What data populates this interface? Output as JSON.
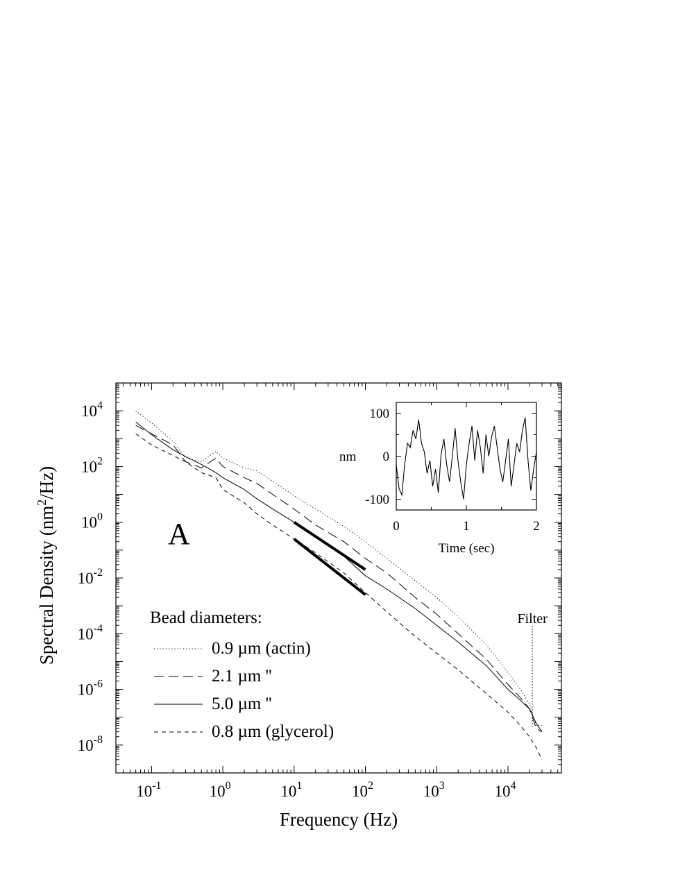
{
  "chart_data": [
    {
      "type": "line",
      "title": "",
      "panel_label": "A",
      "xlabel": "Frequency (Hz)",
      "ylabel_base": "Spectral Density (nm",
      "ylabel_sup": "2",
      "ylabel_tail": "/Hz)",
      "x_scale": "log",
      "y_scale": "log",
      "xlim": [
        0.0316,
        56234
      ],
      "ylim": [
        1e-09,
        100000.0
      ],
      "x_ticks": [
        {
          "value": 0.1,
          "base": "10",
          "exp": "-1"
        },
        {
          "value": 1,
          "base": "10",
          "exp": "0"
        },
        {
          "value": 10,
          "base": "10",
          "exp": "1"
        },
        {
          "value": 100,
          "base": "10",
          "exp": "2"
        },
        {
          "value": 1000,
          "base": "10",
          "exp": "3"
        },
        {
          "value": 10000,
          "base": "10",
          "exp": "4"
        }
      ],
      "y_ticks": [
        {
          "value": 10000,
          "base": "10",
          "exp": "4"
        },
        {
          "value": 100,
          "base": "10",
          "exp": "2"
        },
        {
          "value": 1,
          "base": "10",
          "exp": "0"
        },
        {
          "value": 0.01,
          "base": "10",
          "exp": "-2"
        },
        {
          "value": 0.0001,
          "base": "10",
          "exp": "-4"
        },
        {
          "value": 1e-06,
          "base": "10",
          "exp": "-6"
        },
        {
          "value": 1e-08,
          "base": "10",
          "exp": "-8"
        }
      ],
      "legend_title": "Bead diameters:",
      "legend_position": "bottom-left",
      "series": [
        {
          "name": "0.9 µm (actin)",
          "style": "dotted",
          "x": [
            0.06,
            0.1,
            0.2,
            0.3,
            0.5,
            0.8,
            1,
            2,
            3,
            5,
            10,
            20,
            50,
            100,
            200,
            500,
            1000,
            2000,
            5000,
            10000,
            15000,
            20000,
            25000,
            30000
          ],
          "y": [
            10000,
            3700,
            800,
            200,
            150,
            350,
            200,
            90,
            70,
            30,
            9,
            3,
            0.7,
            0.2,
            0.05,
            0.008,
            0.002,
            0.0004,
            4e-05,
            4e-06,
            1e-06,
            3e-07,
            5e-08,
            5e-08
          ]
        },
        {
          "name": "2.1 µm ''",
          "style": "dashed",
          "x": [
            0.06,
            0.1,
            0.2,
            0.3,
            0.5,
            0.8,
            1,
            2,
            3,
            5,
            10,
            20,
            50,
            100,
            200,
            500,
            1000,
            2000,
            5000,
            10000,
            15000,
            20000,
            25000,
            30000
          ],
          "y": [
            3000,
            1500,
            600,
            150,
            90,
            200,
            100,
            40,
            25,
            10,
            3,
            0.8,
            0.2,
            0.05,
            0.015,
            0.002,
            0.0005,
            0.0001,
            1.2e-05,
            1.5e-06,
            5e-07,
            2e-07,
            4e-08,
            3e-08
          ]
        },
        {
          "name": "5.0 µm ''",
          "style": "solid",
          "x": [
            0.06,
            0.1,
            0.2,
            0.3,
            0.5,
            0.8,
            1,
            2,
            3,
            5,
            10,
            20,
            50,
            100,
            200,
            500,
            1000,
            2000,
            5000,
            10000,
            15000,
            20000,
            25000,
            30000
          ],
          "y": [
            4000,
            1400,
            400,
            230,
            120,
            60,
            40,
            15,
            7,
            3,
            1,
            0.3,
            0.06,
            0.012,
            0.004,
            0.0008,
            0.0002,
            5e-05,
            7e-06,
            1e-06,
            4e-07,
            2e-07,
            6e-08,
            3e-08
          ]
        },
        {
          "name": "0.8 µm (glycerol)",
          "style": "short-dashed",
          "x": [
            0.06,
            0.1,
            0.2,
            0.3,
            0.5,
            0.8,
            1,
            2,
            3,
            5,
            10,
            20,
            50,
            100,
            200,
            500,
            1000,
            2000,
            5000,
            10000,
            15000,
            20000,
            25000,
            30000
          ],
          "y": [
            1500,
            600,
            250,
            150,
            60,
            40,
            15,
            5,
            2,
            0.8,
            0.25,
            0.08,
            0.015,
            0.003,
            0.0006,
            8e-05,
            2e-05,
            5e-06,
            7e-07,
            1.5e-07,
            5e-08,
            2e-08,
            8e-09,
            3e-09
          ]
        }
      ],
      "reference_lines": [
        {
          "x": [
            10,
            100
          ],
          "y": [
            1,
            0.02
          ]
        },
        {
          "x": [
            10,
            100
          ],
          "y": [
            0.25,
            0.0025
          ]
        }
      ],
      "annotation": {
        "label": "Filter",
        "x": 22000
      }
    },
    {
      "type": "line",
      "title": "",
      "xlabel": "Time (sec)",
      "ylabel": "nm",
      "xlim": [
        0,
        2
      ],
      "ylim": [
        -125,
        125
      ],
      "x_ticks": [
        "0",
        "1",
        "2"
      ],
      "y_ticks": [
        "100",
        "0",
        "-100"
      ],
      "series": [
        {
          "x": [
            0,
            0.04,
            0.08,
            0.12,
            0.16,
            0.2,
            0.24,
            0.28,
            0.32,
            0.36,
            0.4,
            0.44,
            0.48,
            0.52,
            0.56,
            0.6,
            0.64,
            0.68,
            0.72,
            0.76,
            0.8,
            0.84,
            0.88,
            0.92,
            0.96,
            1,
            1.04,
            1.08,
            1.12,
            1.16,
            1.2,
            1.24,
            1.28,
            1.32,
            1.36,
            1.4,
            1.44,
            1.48,
            1.52,
            1.56,
            1.6,
            1.64,
            1.68,
            1.72,
            1.76,
            1.8,
            1.84,
            1.88,
            1.92,
            1.96,
            2
          ],
          "y": [
            -20,
            -75,
            -90,
            -20,
            30,
            20,
            60,
            40,
            85,
            30,
            10,
            -40,
            -10,
            -70,
            -30,
            -85,
            5,
            40,
            -20,
            -60,
            0,
            65,
            -10,
            -60,
            -100,
            -20,
            30,
            70,
            -10,
            60,
            20,
            -40,
            50,
            0,
            45,
            70,
            20,
            -30,
            -60,
            -10,
            40,
            -70,
            -20,
            30,
            10,
            60,
            90,
            -10,
            -80,
            -30,
            10
          ]
        }
      ]
    }
  ]
}
